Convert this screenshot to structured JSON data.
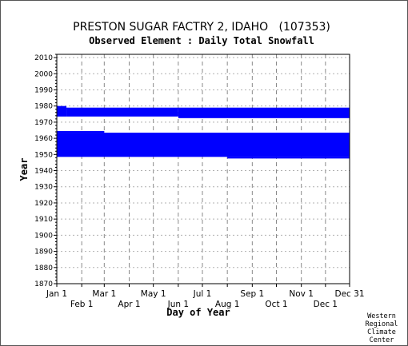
{
  "chart_data": {
    "type": "bar",
    "title": "PRESTON SUGAR FACTRY 2, IDAHO   (107353)",
    "subtitle": "Observed Element : Daily Total Snowfall",
    "xlabel": "Day of Year",
    "ylabel": "Year",
    "xlim": [
      1,
      365
    ],
    "ylim": [
      1870,
      2012
    ],
    "x_ticks": [
      {
        "label": "Jan 1",
        "day": 1
      },
      {
        "label": "Feb 1",
        "day": 32
      },
      {
        "label": "Mar 1",
        "day": 60
      },
      {
        "label": "Apr 1",
        "day": 91
      },
      {
        "label": "May 1",
        "day": 121
      },
      {
        "label": "Jun 1",
        "day": 152
      },
      {
        "label": "Jul 1",
        "day": 182
      },
      {
        "label": "Aug 1",
        "day": 213
      },
      {
        "label": "Sep 1",
        "day": 244
      },
      {
        "label": "Oct 1",
        "day": 274
      },
      {
        "label": "Nov 1",
        "day": 305
      },
      {
        "label": "Dec 1",
        "day": 335
      },
      {
        "label": "Dec 31",
        "day": 365
      }
    ],
    "y_ticks": [
      1870,
      1880,
      1890,
      1900,
      1910,
      1920,
      1930,
      1940,
      1950,
      1960,
      1970,
      1980,
      1990,
      2000,
      2010
    ],
    "grid": true,
    "series_color": "#0000ff",
    "coverage_blocks": [
      {
        "day_start": 1,
        "day_end": 365,
        "year_start": 1948.5,
        "year_end": 1963.5
      },
      {
        "day_start": 1,
        "day_end": 13,
        "year_start": 1973.5,
        "year_end": 1980.0
      },
      {
        "day_start": 13,
        "day_end": 152,
        "year_start": 1973.5,
        "year_end": 1979.0
      },
      {
        "day_start": 152,
        "day_end": 365,
        "year_start": 1972.5,
        "year_end": 1979.0
      },
      {
        "day_start": 1,
        "day_end": 60,
        "year_start": 1963.5,
        "year_end": 1964.5
      },
      {
        "day_start": 274,
        "day_end": 365,
        "year_start": 1962.5,
        "year_end": 1963.5
      },
      {
        "day_start": 213,
        "day_end": 365,
        "year_start": 1947.5,
        "year_end": 1948.5
      }
    ]
  },
  "credit": [
    "Western",
    "Regional",
    "Climate",
    "Center"
  ]
}
